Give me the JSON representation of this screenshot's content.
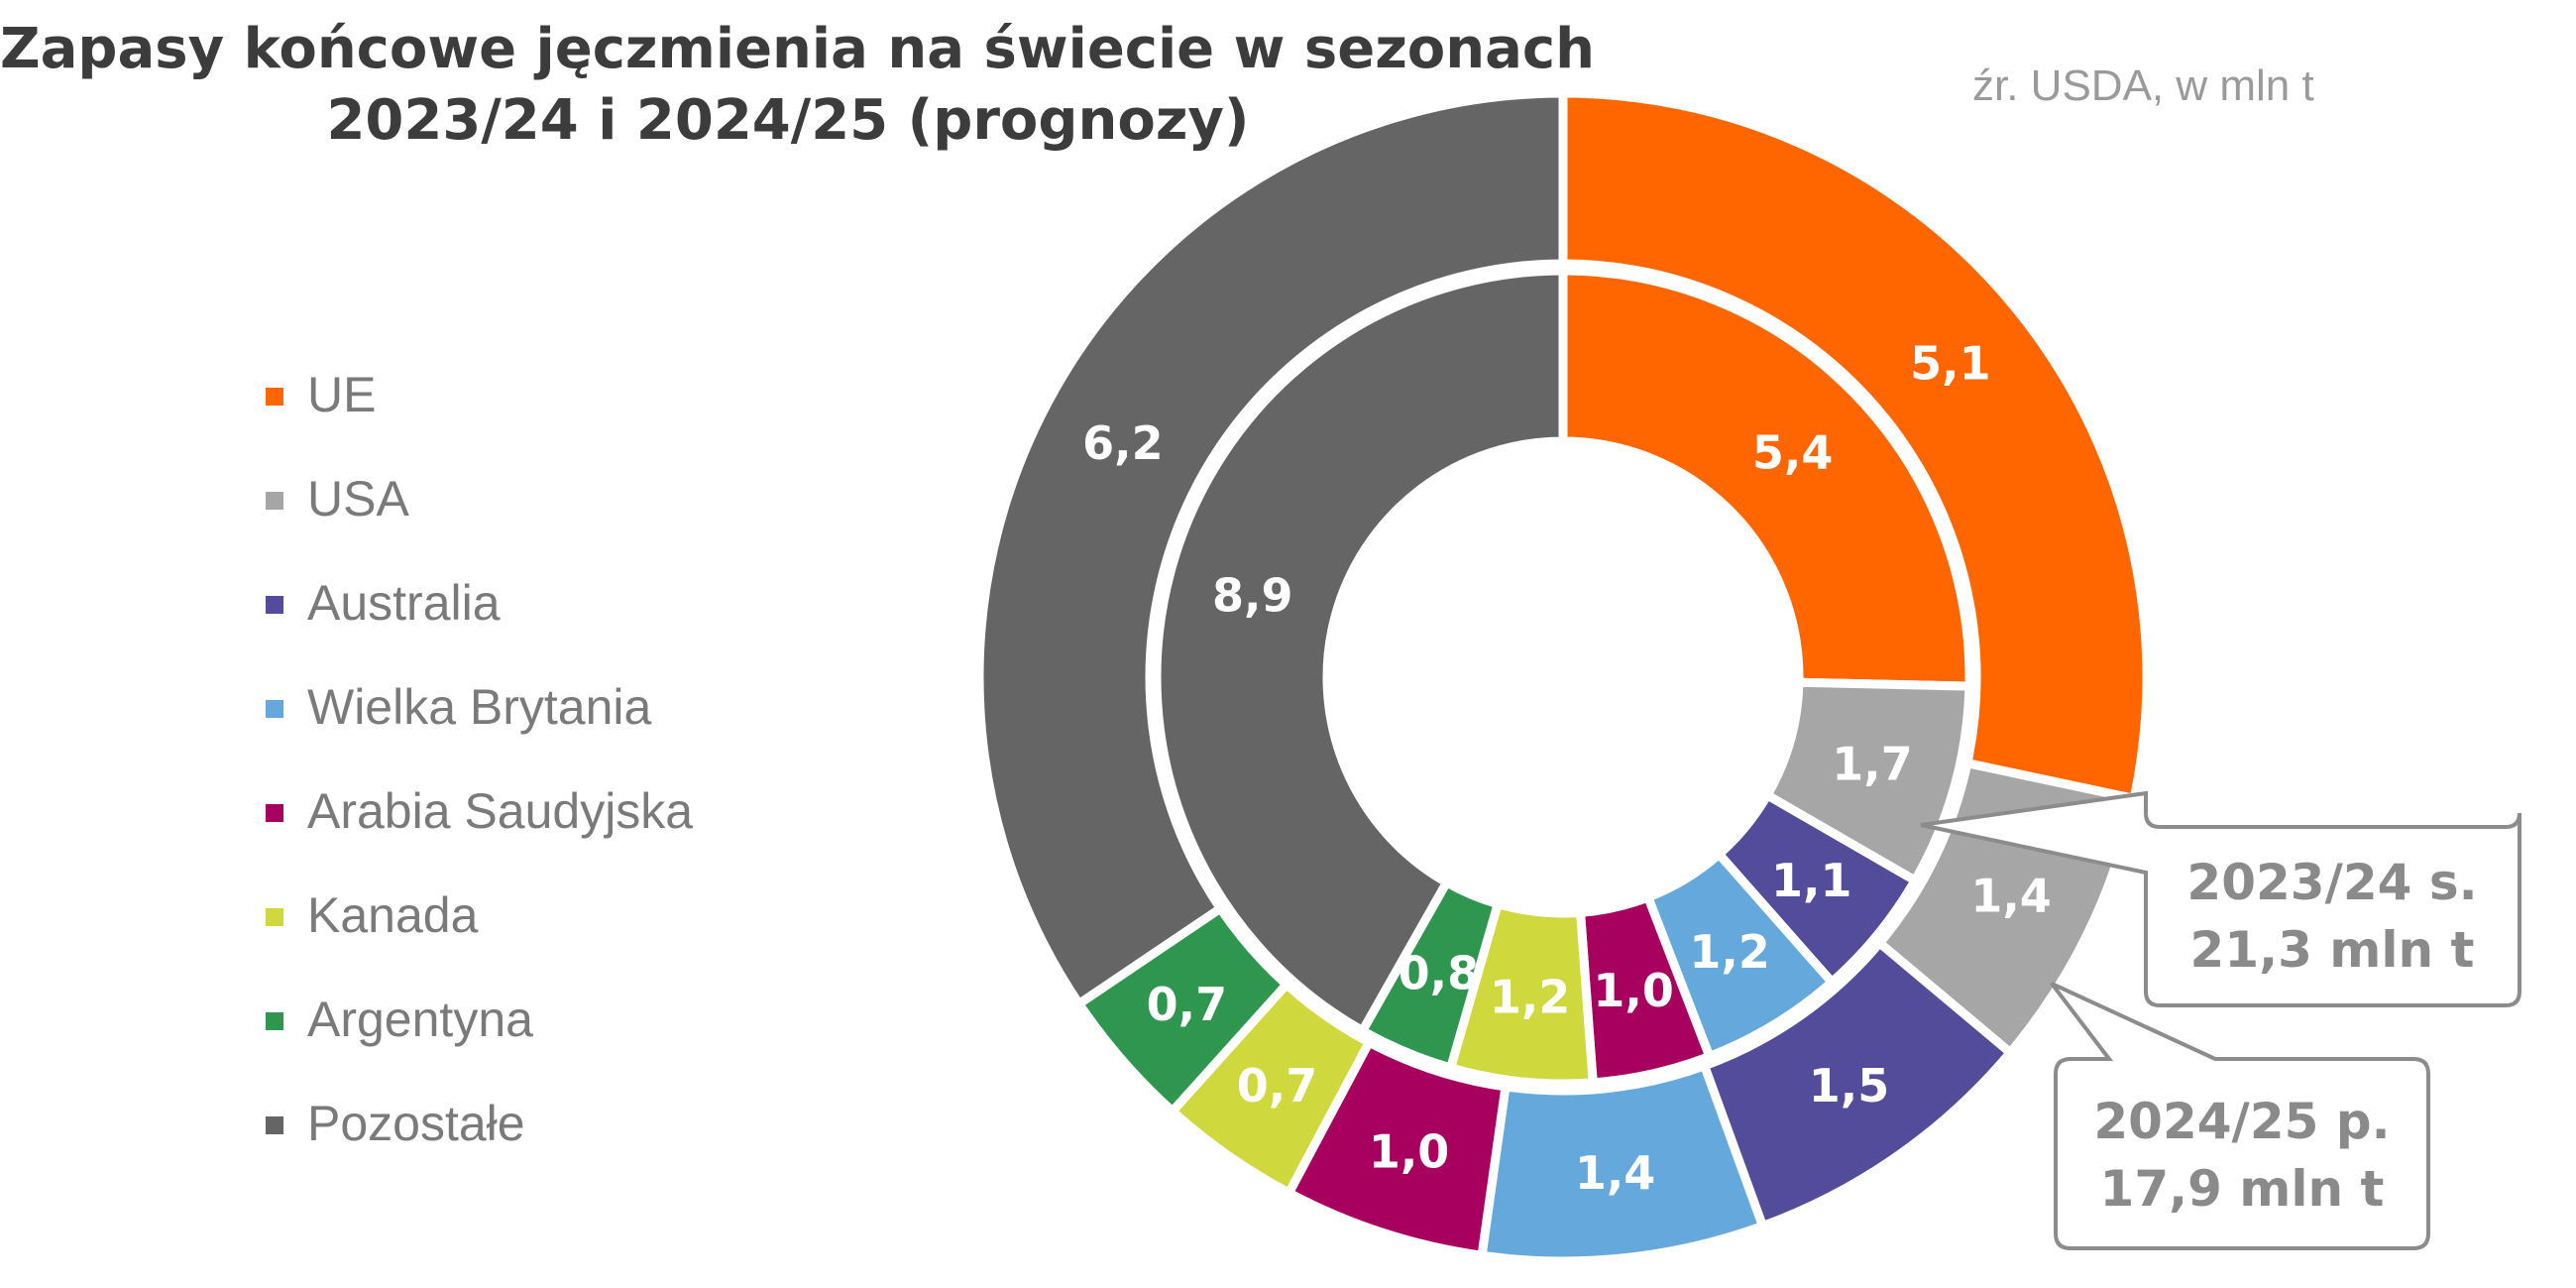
{
  "title_lines": [
    "Zapasy końcowe jęczmienia na świecie w sezonach",
    "2023/24 i 2024/25 (prognozy)"
  ],
  "source": "źr. USDA, w mln t",
  "chart_data": {
    "type": "doughnut",
    "categories": [
      "UE",
      "USA",
      "Australia",
      "Wielka Brytania",
      "Arabia Saudyjska",
      "Kanada",
      "Argentyna",
      "Pozostałe"
    ],
    "colors": [
      "#FF6600",
      "#A6A6A6",
      "#524C9A",
      "#64A8DC",
      "#A8005F",
      "#CFD83C",
      "#2F9650",
      "#656565"
    ],
    "series": [
      {
        "values": [
          5.4,
          1.7,
          1.1,
          1.2,
          1.0,
          1.2,
          0.8,
          8.9
        ],
        "labels": [
          "5,4",
          "1,7",
          "1,1",
          "1,2",
          "1,0",
          "1,2",
          "0,8",
          "8,9"
        ],
        "ring": "inner"
      },
      {
        "values": [
          5.1,
          1.4,
          1.5,
          1.4,
          1.0,
          0.7,
          0.7,
          6.2
        ],
        "labels": [
          "5,1",
          "1,4",
          "1,5",
          "1,4",
          "1,0",
          "0,7",
          "0,7",
          "6,2"
        ],
        "ring": "outer"
      }
    ],
    "legend_position": "left",
    "annotations": [
      {
        "ring": "inner",
        "lines": [
          "2023/24 s.",
          "21,3 mln t"
        ]
      },
      {
        "ring": "outer",
        "lines": [
          "2024/25 p.",
          "17,9 mln t"
        ]
      }
    ]
  }
}
